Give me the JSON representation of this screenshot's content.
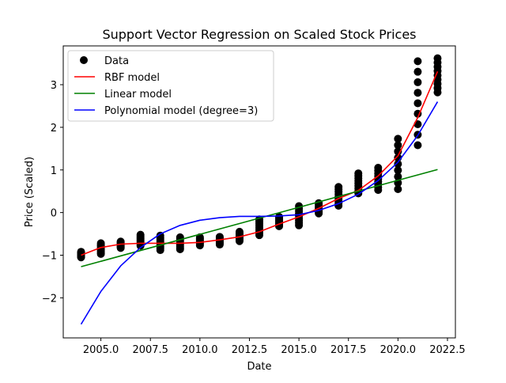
{
  "chart_data": {
    "type": "scatter",
    "title": "Support Vector Regression on Scaled Stock Prices",
    "xlabel": "Date",
    "ylabel": "Price (Scaled)",
    "xlim": [
      2003.1,
      2022.9
    ],
    "ylim": [
      -2.94,
      3.91
    ],
    "x_ticks": [
      2005.0,
      2007.5,
      2010.0,
      2012.5,
      2015.0,
      2017.5,
      2020.0,
      2022.5
    ],
    "x_tick_labels": [
      "2005.0",
      "2007.5",
      "2010.0",
      "2012.5",
      "2015.0",
      "2017.5",
      "2020.0",
      "2022.5"
    ],
    "y_ticks": [
      -2,
      -1,
      0,
      1,
      2,
      3
    ],
    "y_tick_labels": [
      "−2",
      "−1",
      "0",
      "1",
      "2",
      "3"
    ],
    "legend_position": "top-left",
    "grid": false,
    "scatter": {
      "name": "Data",
      "color": "#000000",
      "groups": [
        {
          "x": 2004,
          "y_min": -1.05,
          "y_max": -0.92
        },
        {
          "x": 2005,
          "y_min": -0.97,
          "y_max": -0.72
        },
        {
          "x": 2006,
          "y_min": -0.83,
          "y_max": -0.68
        },
        {
          "x": 2007,
          "y_min": -0.78,
          "y_max": -0.52
        },
        {
          "x": 2008,
          "y_min": -0.88,
          "y_max": -0.54
        },
        {
          "x": 2009,
          "y_min": -0.86,
          "y_max": -0.58
        },
        {
          "x": 2010,
          "y_min": -0.77,
          "y_max": -0.58
        },
        {
          "x": 2011,
          "y_min": -0.75,
          "y_max": -0.57
        },
        {
          "x": 2012,
          "y_min": -0.67,
          "y_max": -0.45
        },
        {
          "x": 2013,
          "y_min": -0.53,
          "y_max": -0.16
        },
        {
          "x": 2014,
          "y_min": -0.32,
          "y_max": -0.1
        },
        {
          "x": 2015,
          "y_min": -0.3,
          "y_max": 0.15
        },
        {
          "x": 2016,
          "y_min": -0.02,
          "y_max": 0.22
        },
        {
          "x": 2017,
          "y_min": 0.16,
          "y_max": 0.6
        },
        {
          "x": 2018,
          "y_min": 0.45,
          "y_max": 0.92
        },
        {
          "x": 2019,
          "y_min": 0.53,
          "y_max": 1.05
        },
        {
          "x": 2020,
          "y_min": 0.55,
          "y_max": 1.73
        },
        {
          "x": 2021,
          "y_min": 1.58,
          "y_max": 3.55
        },
        {
          "x": 2022,
          "y_min": 2.82,
          "y_max": 3.62
        }
      ]
    },
    "series": [
      {
        "name": "RBF model",
        "color": "#ff0000",
        "x": [
          2004,
          2005,
          2006,
          2007,
          2008,
          2009,
          2010,
          2011,
          2012,
          2013,
          2014,
          2015,
          2016,
          2017,
          2018,
          2019,
          2020,
          2021,
          2022
        ],
        "y": [
          -1.0,
          -0.82,
          -0.74,
          -0.72,
          -0.72,
          -0.72,
          -0.7,
          -0.64,
          -0.57,
          -0.45,
          -0.27,
          -0.1,
          0.1,
          0.33,
          0.52,
          0.86,
          1.33,
          2.23,
          3.31
        ]
      },
      {
        "name": "Linear model",
        "color": "#008000",
        "x": [
          2004,
          2022
        ],
        "y": [
          -1.27,
          1.01
        ]
      },
      {
        "name": "Polynomial model (degree=3)",
        "color": "#0000ff",
        "x": [
          2004,
          2005,
          2006,
          2007,
          2008,
          2009,
          2010,
          2011,
          2012,
          2013,
          2014,
          2015,
          2016,
          2017,
          2018,
          2019,
          2020,
          2021,
          2022
        ],
        "y": [
          -2.62,
          -1.85,
          -1.25,
          -0.82,
          -0.5,
          -0.3,
          -0.18,
          -0.12,
          -0.09,
          -0.09,
          -0.08,
          -0.05,
          0.05,
          0.21,
          0.43,
          0.75,
          1.18,
          1.81,
          2.6
        ]
      }
    ]
  }
}
